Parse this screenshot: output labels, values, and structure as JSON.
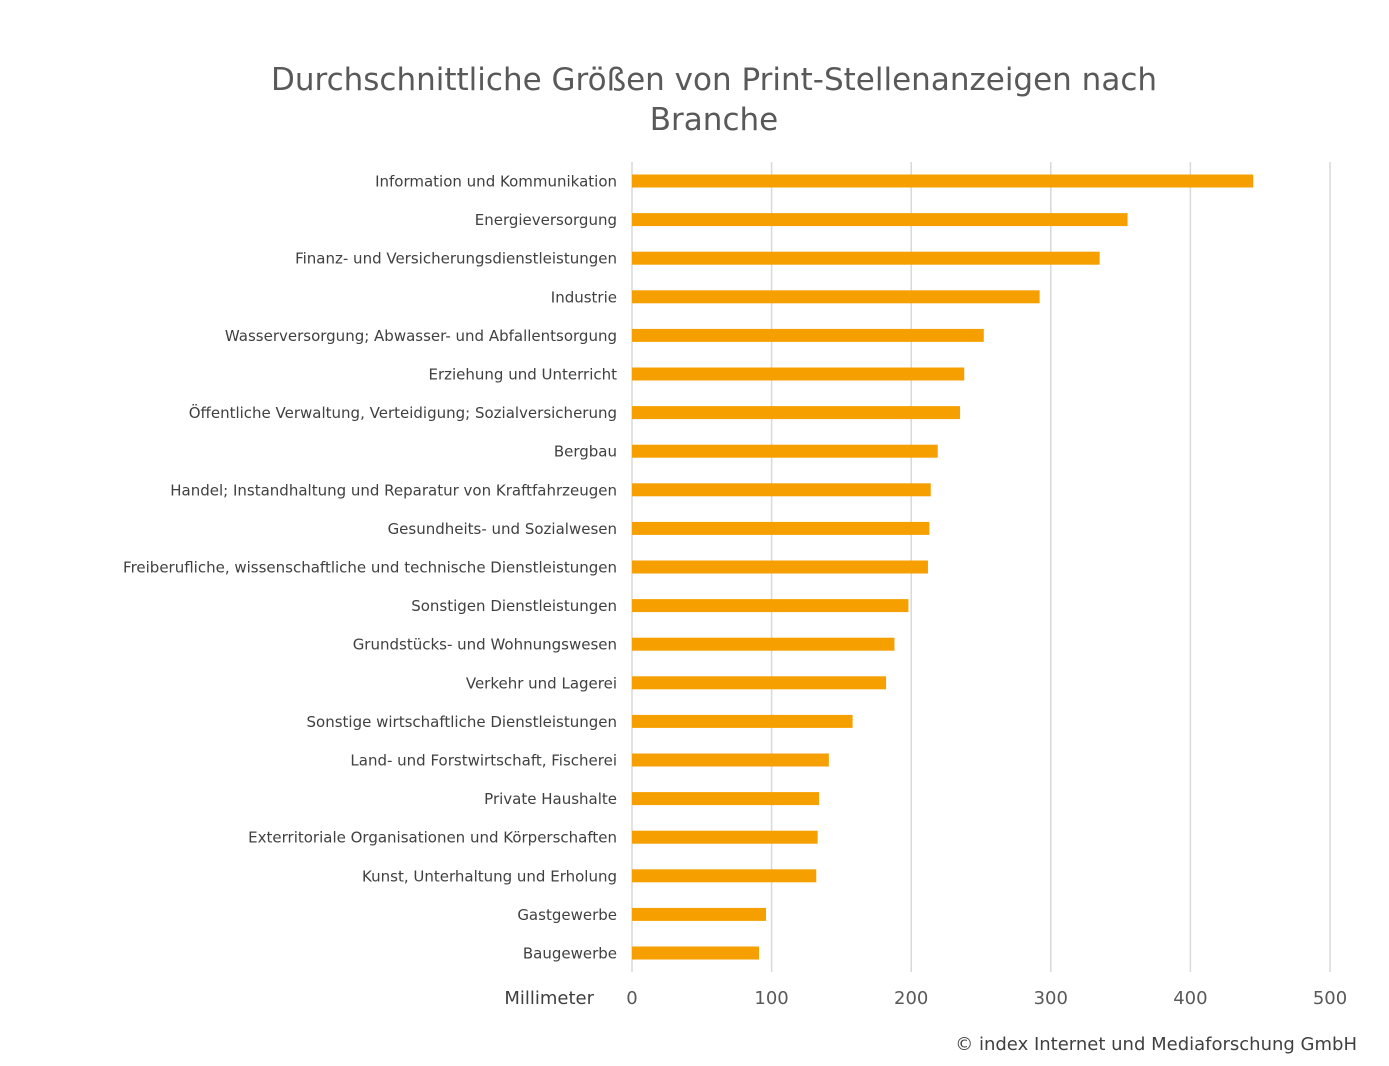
{
  "chart_data": {
    "type": "bar",
    "orientation": "horizontal",
    "title": "Durchschnittliche Größen von Print-Stellenanzeigen nach Branche",
    "xlabel": "Millimeter",
    "ylabel": "",
    "xlim": [
      0,
      500
    ],
    "ticks": [
      0,
      100,
      200,
      300,
      400,
      500
    ],
    "grid": true,
    "legend": "none",
    "bar_color": "#F5A000",
    "categories": [
      "Information und Kommunikation",
      "Energieversorgung",
      "Finanz- und Versicherungsdienstleistungen",
      "Industrie",
      "Wasserversorgung; Abwasser- und Abfallentsorgung",
      "Erziehung und Unterricht",
      "Öffentliche Verwaltung, Verteidigung; Sozialversicherung",
      "Bergbau",
      "Handel; Instandhaltung und Reparatur von Kraftfahrzeugen",
      "Gesundheits- und Sozialwesen",
      "Freiberufliche, wissenschaftliche und technische Dienstleistungen",
      "Sonstigen Dienstleistungen",
      "Grundstücks- und Wohnungswesen",
      "Verkehr und Lagerei",
      "Sonstige wirtschaftliche Dienstleistungen",
      "Land- und Forstwirtschaft, Fischerei",
      "Private Haushalte ",
      "Exterritoriale Organisationen und Körperschaften",
      "Kunst, Unterhaltung und Erholung",
      "Gastgewerbe",
      "Baugewerbe"
    ],
    "values": [
      445,
      355,
      335,
      292,
      252,
      238,
      235,
      219,
      214,
      213,
      212,
      198,
      188,
      182,
      158,
      141,
      134,
      133,
      132,
      96,
      91
    ]
  },
  "credit": "© index Internet und Mediaforschung GmbH"
}
